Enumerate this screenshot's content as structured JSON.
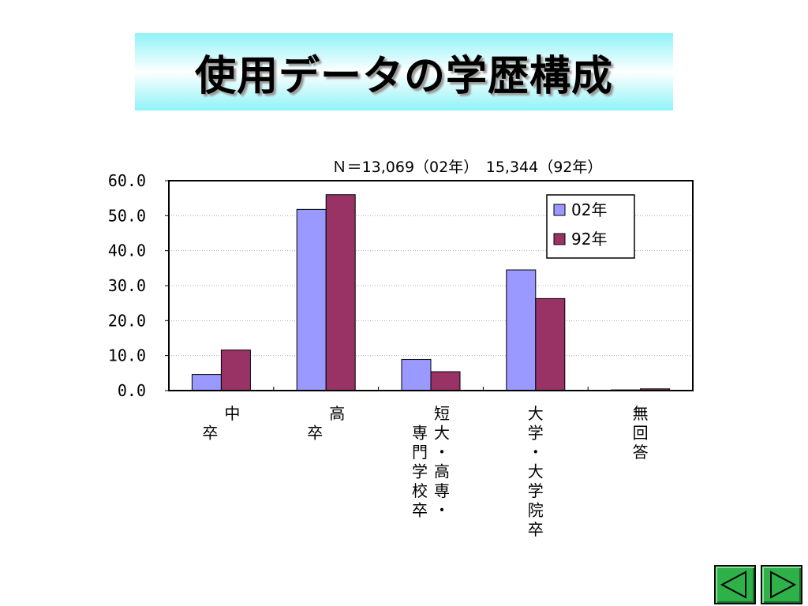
{
  "slide": {
    "title": "使用データの学歴構成"
  },
  "chart_data": {
    "type": "bar",
    "subtitle": "Ｎ＝13,069（02年）　15,344（92年）",
    "categories": [
      [
        "中",
        "卒"
      ],
      [
        "高",
        "卒"
      ],
      [
        "短大・高専・",
        "専門学校卒"
      ],
      [
        "大学・大学院卒"
      ],
      [
        "無回答"
      ]
    ],
    "category_texts": [
      "中卒",
      "高卒",
      "短大・高専・専門学校卒",
      "大学・大学院卒",
      "無回答"
    ],
    "series": [
      {
        "name": "02年",
        "color": "#9999ff",
        "values": [
          4.6,
          51.8,
          8.9,
          34.5,
          0.2
        ]
      },
      {
        "name": "92年",
        "color": "#993366",
        "values": [
          11.6,
          56.0,
          5.4,
          26.3,
          0.5
        ]
      }
    ],
    "ylim": [
      0,
      60
    ],
    "yticks": [
      "0.0",
      "10.0",
      "20.0",
      "30.0",
      "40.0",
      "50.0",
      "60.0"
    ],
    "ytick_values": [
      0,
      10,
      20,
      30,
      40,
      50,
      60
    ],
    "grid": true,
    "legend_position": "top-right"
  },
  "nav": {
    "prev_icon": "triangle-left-icon",
    "next_icon": "triangle-right-icon"
  }
}
